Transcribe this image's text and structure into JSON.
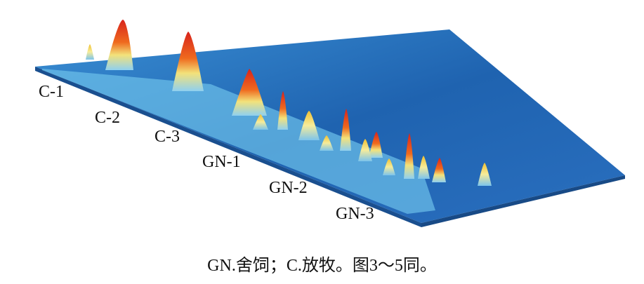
{
  "figure": {
    "sample_labels": [
      "C-1",
      "C-2",
      "C-3",
      "GN-1",
      "GN-2",
      "GN-3"
    ],
    "caption": "GN.舍饲；C.放牧。图3～5同。",
    "colors": {
      "plane": "#1f63b0",
      "low": "#5ab4e6",
      "mid": "#f3e27a",
      "high": "#d8231c"
    }
  }
}
